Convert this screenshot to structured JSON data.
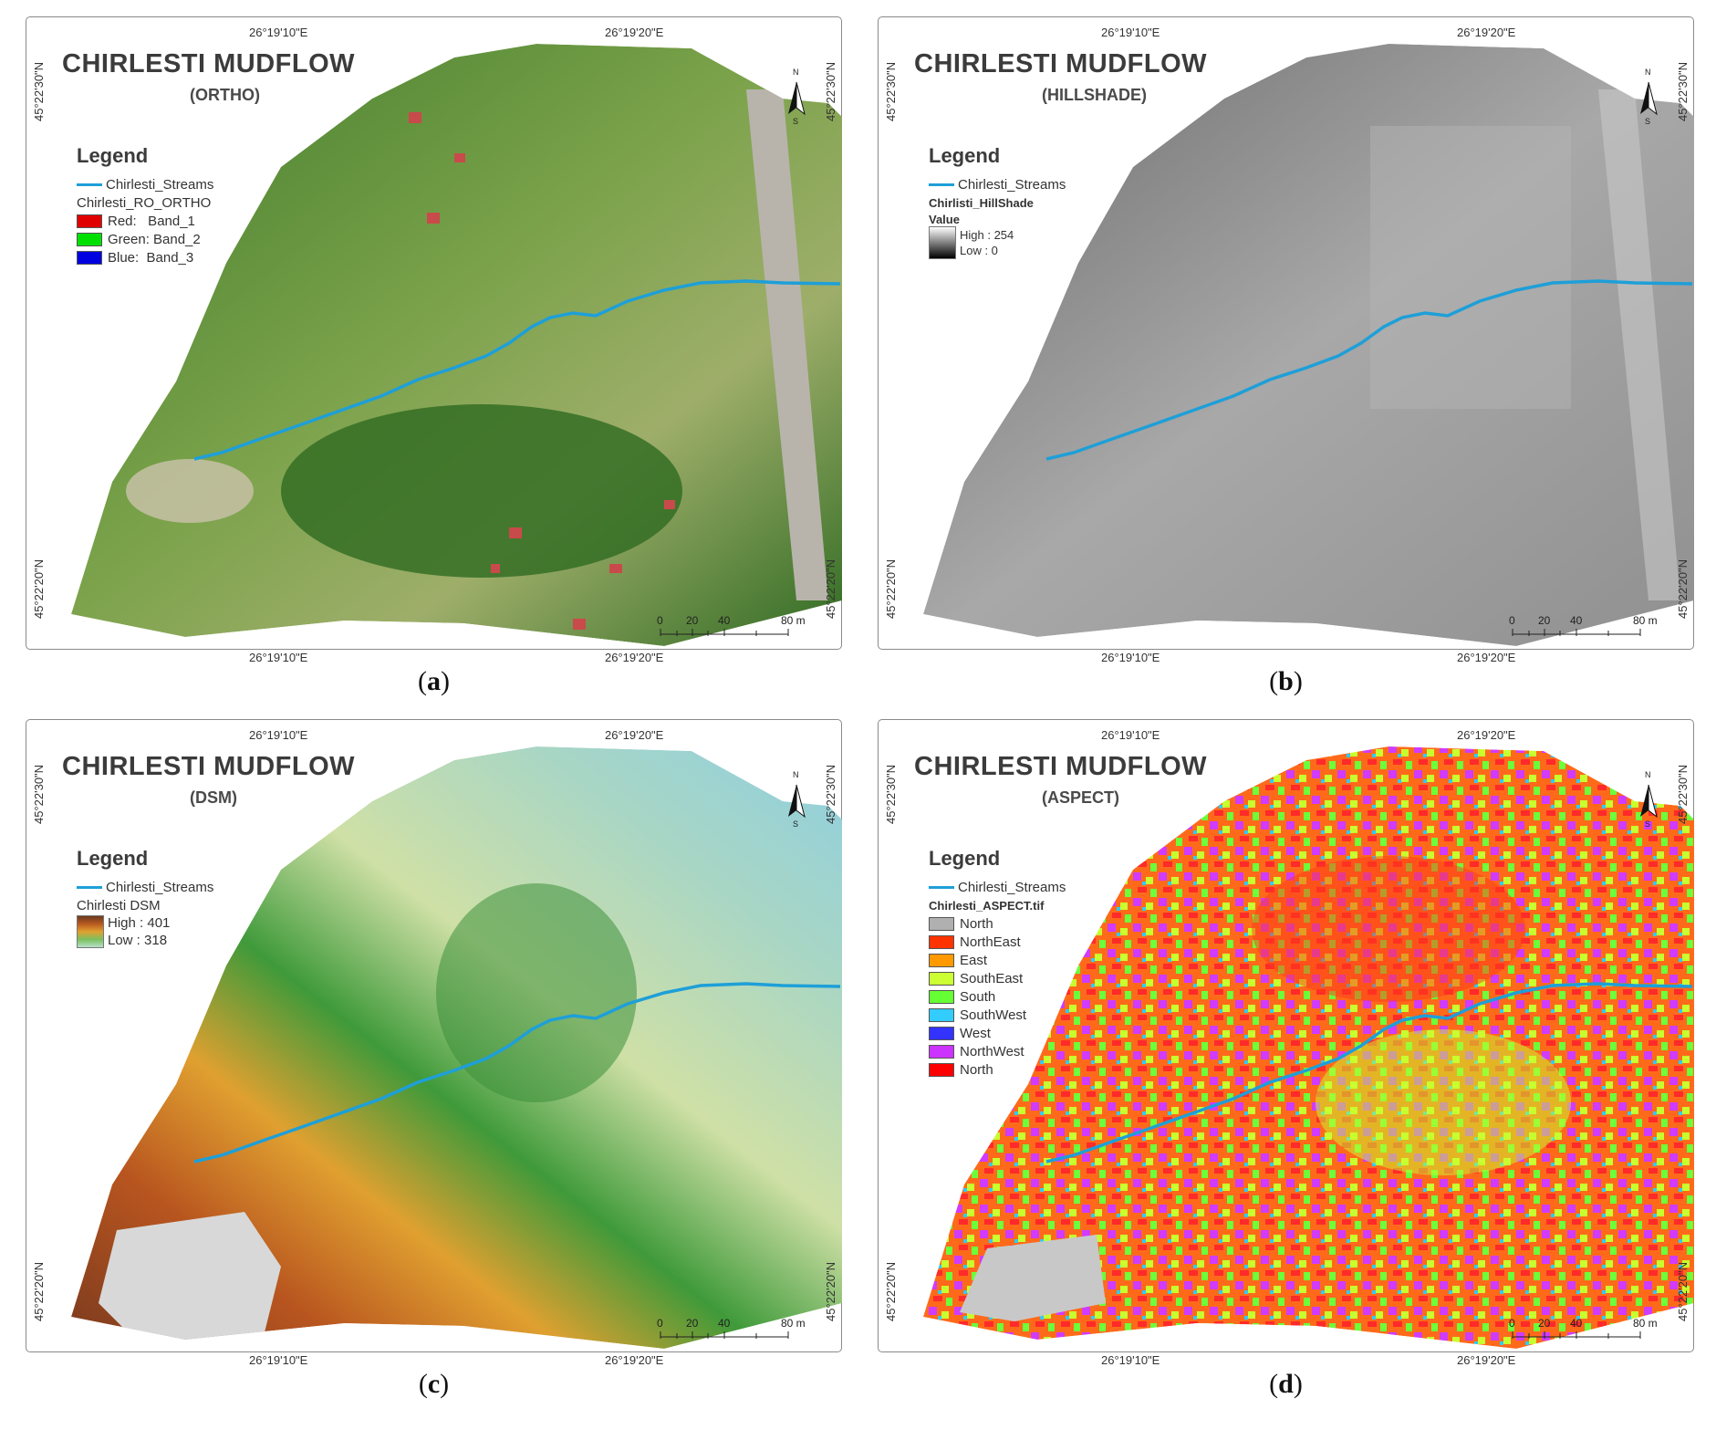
{
  "panels": [
    {
      "id": "a",
      "title": "CHIRLESTI MUDFLOW",
      "subtitle": "(ORTHO)",
      "legend_title": "Legend",
      "stream_label": "Chirlesti_Streams",
      "layer_name": "Chirlesti_RO_ORTHO",
      "items": [
        {
          "label": "Red:   Band_1",
          "color": "#e00000"
        },
        {
          "label": "Green: Band_2",
          "color": "#00e000"
        },
        {
          "label": "Blue:  Band_3",
          "color": "#0000e0"
        }
      ],
      "caption": "(a)",
      "caption_letter": "a"
    },
    {
      "id": "b",
      "title": "CHIRLESTI MUDFLOW",
      "subtitle": "(HILLSHADE)",
      "legend_title": "Legend",
      "stream_label": "Chirlesti_Streams",
      "layer_name": "Chirlisti_HillShade",
      "value_label": "Value",
      "high_label": "High : 254",
      "low_label": "Low : 0",
      "caption": "(b)",
      "caption_letter": "b"
    },
    {
      "id": "c",
      "title": "CHIRLESTI MUDFLOW",
      "subtitle": "(DSM)",
      "legend_title": "Legend",
      "stream_label": "Chirlesti_Streams",
      "layer_name": "Chirlesti DSM",
      "high_label": "High : 401",
      "low_label": "Low : 318",
      "caption": "(c)",
      "caption_letter": "c"
    },
    {
      "id": "d",
      "title": "CHIRLESTI MUDFLOW",
      "subtitle": "(ASPECT)",
      "legend_title": "Legend",
      "stream_label": "Chirlesti_Streams",
      "layer_name": "Chirlesti_ASPECT.tif",
      "items": [
        {
          "label": "North",
          "color": "#b0b0b0"
        },
        {
          "label": "NorthEast",
          "color": "#ff3300"
        },
        {
          "label": "East",
          "color": "#ff9900"
        },
        {
          "label": "SouthEast",
          "color": "#ccff33"
        },
        {
          "label": "South",
          "color": "#66ff33"
        },
        {
          "label": "SouthWest",
          "color": "#33ccff"
        },
        {
          "label": "West",
          "color": "#3333ff"
        },
        {
          "label": "NorthWest",
          "color": "#cc33ff"
        },
        {
          "label": "North",
          "color": "#ff0000"
        }
      ],
      "caption": "(d)",
      "caption_letter": "d"
    }
  ],
  "coords": {
    "top_left": "26°19'10\"E",
    "top_right": "26°19'20\"E",
    "bottom_left": "26°19'10\"E",
    "bottom_right": "26°19'20\"E",
    "left_top": "45°22'30\"N",
    "left_bottom": "45°22'20\"N",
    "right_top": "45°22'30\"N",
    "right_bottom": "45°22'20\"N"
  },
  "scale": {
    "t0": "0",
    "t1": "20",
    "t2": "40",
    "t3": "80 m"
  },
  "north_symbol": "north-arrow-icon",
  "north_letters": {
    "n": "N",
    "s": "S"
  },
  "colors": {
    "stream": "#1e9fd8",
    "frame": "#8a8a8a"
  }
}
